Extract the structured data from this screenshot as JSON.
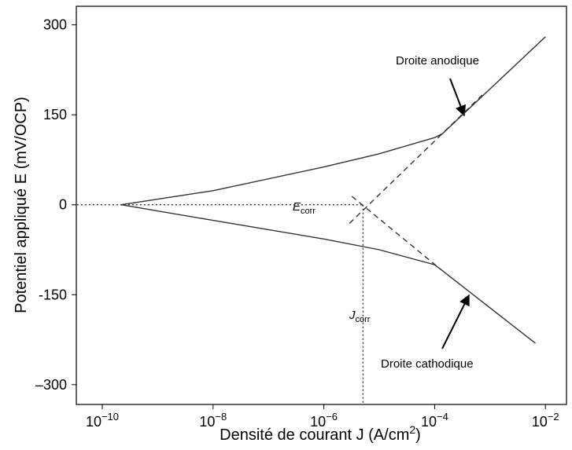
{
  "chart_data": {
    "type": "line",
    "x_label": "Densité de courant J (A/cm",
    "x_label_sup": "2",
    "x_label_end": ")",
    "y_label": "Potentiel appliqué E (mV/OCP)",
    "x_log": true,
    "xlim": [
      3.4e-11,
      0.024
    ],
    "ylim": [
      -333,
      331
    ],
    "xticks": [
      {
        "value": 1e-10,
        "label": "10",
        "exponent": "−10"
      },
      {
        "value": 1e-08,
        "label": "10",
        "exponent": "−8"
      },
      {
        "value": 1e-06,
        "label": "10",
        "exponent": "−6"
      },
      {
        "value": 0.0001,
        "label": "10",
        "exponent": "−4"
      },
      {
        "value": 0.01,
        "label": "10",
        "exponent": "−2"
      }
    ],
    "yticks": [
      300,
      150,
      0,
      {
        "value": -150,
        "label": "-150"
      },
      {
        "value": -300,
        "label": "–300"
      }
    ],
    "series": [
      {
        "style": "solid",
        "color": "#333333",
        "x": [
          2.2e-10,
          1e-08,
          1e-06,
          1e-05,
          0.0001,
          0.00014,
          0.01
        ],
        "values": [
          0,
          23.5,
          63,
          85,
          112,
          119,
          280
        ]
      },
      {
        "style": "solid",
        "color": "#333333",
        "x": [
          2.2e-10,
          1e-08,
          1e-06,
          1e-05,
          0.0001,
          0.00013,
          0.0066
        ],
        "values": [
          0,
          -26,
          -57,
          -75,
          -100,
          -108,
          -231
        ]
      },
      {
        "style": "dashed",
        "color": "#333333",
        "x": [
          2.9e-06,
          0.0008
        ],
        "values": [
          -31,
          187
        ]
      },
      {
        "style": "dashed",
        "color": "#333333",
        "x": [
          3.2e-06,
          0.00013
        ],
        "values": [
          14,
          -108
        ]
      },
      {
        "style": "dotted",
        "color": "#333333",
        "x": [
          3.5e-11,
          5.1e-06
        ],
        "values": [
          0,
          0
        ]
      },
      {
        "style": "dotted",
        "color": "#333333",
        "x": [
          5.1e-06,
          5.1e-06
        ],
        "values": [
          0,
          -333
        ]
      }
    ],
    "annotations": {
      "anodic": "Droite anodique",
      "cathodic": "Droite cathodique",
      "ecorr": "E",
      "ecorr_sub": "corr",
      "jcorr": "J",
      "jcorr_sub": "corr"
    }
  }
}
